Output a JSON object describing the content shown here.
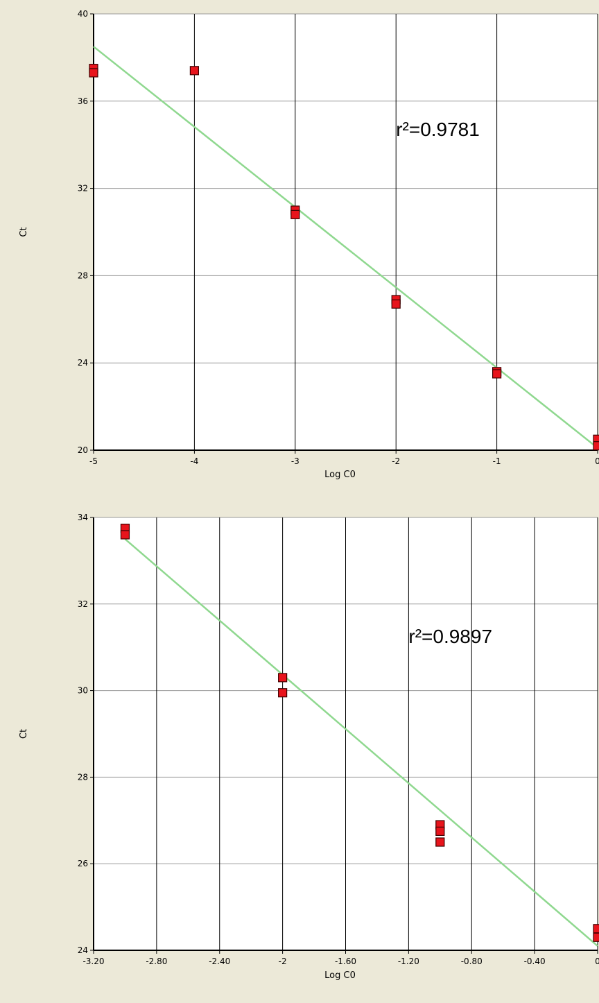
{
  "colors": {
    "background": "#ece9d8",
    "plot_area": "#ffffff",
    "fit_line": "#8fd88f",
    "marker_fill": "#e8141c",
    "marker_stroke": "#400000",
    "grid_vertical": "#000000",
    "grid_horizontal": "#9a9a9a"
  },
  "chart_data": [
    {
      "type": "scatter",
      "xlabel": "Log C0",
      "ylabel": "Ct",
      "xlim": [
        -5,
        0
      ],
      "ylim": [
        20,
        40
      ],
      "xticks": [
        -5,
        -4,
        -3,
        -2,
        -1,
        0
      ],
      "xtick_labels": [
        "-5",
        "-4",
        "-3",
        "-2",
        "-1",
        "0"
      ],
      "yticks": [
        20,
        24,
        28,
        32,
        36,
        40
      ],
      "ytick_labels": [
        "20",
        "24",
        "28",
        "32",
        "36",
        "40"
      ],
      "grid": true,
      "annotation": {
        "text": "r²=0.9781",
        "x": -2.0,
        "y": 34.4
      },
      "fit_line": {
        "x": [
          -5,
          0
        ],
        "y": [
          38.5,
          20.1
        ]
      },
      "points": {
        "x": [
          -5,
          -5,
          -4,
          -3,
          -3,
          -2,
          -2,
          -1,
          -1,
          0,
          0
        ],
        "y": [
          37.5,
          37.3,
          37.4,
          31.0,
          30.8,
          26.9,
          26.7,
          23.6,
          23.5,
          20.5,
          20.2
        ]
      }
    },
    {
      "type": "scatter",
      "xlabel": "Log C0",
      "ylabel": "Ct",
      "xlim": [
        -3.2,
        0
      ],
      "ylim": [
        24,
        34
      ],
      "xticks": [
        -3.2,
        -2.8,
        -2.4,
        -2,
        -1.6,
        -1.2,
        -0.8,
        -0.4,
        0
      ],
      "xtick_labels": [
        "-3.20",
        "-2.80",
        "-2.40",
        "-2",
        "-1.60",
        "-1.20",
        "-0.80",
        "-0.40",
        "0"
      ],
      "yticks": [
        24,
        26,
        28,
        30,
        32,
        34
      ],
      "ytick_labels": [
        "24",
        "26",
        "28",
        "30",
        "32",
        "34"
      ],
      "grid": true,
      "annotation": {
        "text": "r²=0.9897",
        "x": -1.2,
        "y": 31.1
      },
      "fit_line": {
        "x": [
          -3,
          0
        ],
        "y": [
          33.5,
          24.1
        ]
      },
      "points": {
        "x": [
          -3,
          -3,
          -2,
          -2,
          -1,
          -1,
          -1,
          0,
          0
        ],
        "y": [
          33.75,
          33.6,
          30.3,
          29.95,
          26.9,
          26.75,
          26.5,
          24.5,
          24.3
        ]
      }
    }
  ]
}
